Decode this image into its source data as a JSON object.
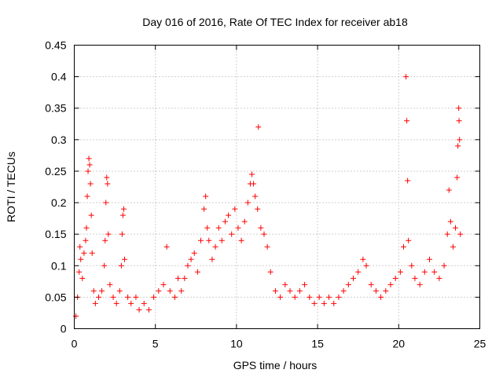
{
  "chart_data": {
    "type": "scatter",
    "title": "Day 016 of 2016, Rate Of TEC Index for receiver ab18",
    "xlabel": "GPS time / hours",
    "ylabel": "ROTI / TECUs",
    "xlim": [
      0,
      25
    ],
    "ylim": [
      0,
      0.45
    ],
    "x_ticks": [
      0,
      5,
      10,
      15,
      20,
      25
    ],
    "x_tick_labels": [
      "0",
      "5",
      "10",
      "15",
      "20",
      "25"
    ],
    "y_ticks": [
      0,
      0.05,
      0.1,
      0.15,
      0.2,
      0.25,
      0.3,
      0.35,
      0.4,
      0.45
    ],
    "y_tick_labels": [
      "0",
      "0.05",
      "0.1",
      "0.15",
      "0.2",
      "0.25",
      "0.3",
      "0.35",
      "0.4",
      "0.45"
    ],
    "grid": true,
    "marker": "plus",
    "marker_color": "#ff0000",
    "series": [
      {
        "points": [
          [
            0.1,
            0.02
          ],
          [
            0.2,
            0.05
          ],
          [
            0.3,
            0.09
          ],
          [
            0.35,
            0.13
          ],
          [
            0.4,
            0.11
          ],
          [
            0.5,
            0.08
          ],
          [
            0.6,
            0.12
          ],
          [
            0.7,
            0.14
          ],
          [
            0.75,
            0.16
          ],
          [
            0.8,
            0.21
          ],
          [
            0.85,
            0.25
          ],
          [
            0.9,
            0.27
          ],
          [
            0.95,
            0.26
          ],
          [
            1.0,
            0.23
          ],
          [
            1.05,
            0.18
          ],
          [
            1.1,
            0.12
          ],
          [
            1.2,
            0.06
          ],
          [
            1.3,
            0.04
          ],
          [
            1.5,
            0.05
          ],
          [
            1.7,
            0.06
          ],
          [
            1.85,
            0.1
          ],
          [
            1.9,
            0.14
          ],
          [
            1.95,
            0.2
          ],
          [
            2.0,
            0.24
          ],
          [
            2.05,
            0.23
          ],
          [
            2.1,
            0.15
          ],
          [
            2.2,
            0.07
          ],
          [
            2.4,
            0.05
          ],
          [
            2.6,
            0.04
          ],
          [
            2.8,
            0.06
          ],
          [
            2.9,
            0.1
          ],
          [
            2.95,
            0.15
          ],
          [
            3.0,
            0.18
          ],
          [
            3.05,
            0.19
          ],
          [
            3.1,
            0.11
          ],
          [
            3.3,
            0.05
          ],
          [
            3.5,
            0.04
          ],
          [
            3.8,
            0.05
          ],
          [
            4.0,
            0.03
          ],
          [
            4.3,
            0.04
          ],
          [
            4.6,
            0.03
          ],
          [
            4.9,
            0.05
          ],
          [
            5.2,
            0.06
          ],
          [
            5.5,
            0.07
          ],
          [
            5.7,
            0.13
          ],
          [
            5.9,
            0.06
          ],
          [
            6.2,
            0.05
          ],
          [
            6.4,
            0.08
          ],
          [
            6.6,
            0.06
          ],
          [
            6.8,
            0.08
          ],
          [
            7.0,
            0.1
          ],
          [
            7.2,
            0.11
          ],
          [
            7.4,
            0.12
          ],
          [
            7.6,
            0.09
          ],
          [
            7.8,
            0.14
          ],
          [
            8.0,
            0.19
          ],
          [
            8.1,
            0.21
          ],
          [
            8.2,
            0.16
          ],
          [
            8.3,
            0.14
          ],
          [
            8.5,
            0.11
          ],
          [
            8.7,
            0.13
          ],
          [
            8.9,
            0.16
          ],
          [
            9.1,
            0.14
          ],
          [
            9.3,
            0.17
          ],
          [
            9.5,
            0.18
          ],
          [
            9.7,
            0.15
          ],
          [
            9.9,
            0.19
          ],
          [
            10.1,
            0.16
          ],
          [
            10.3,
            0.14
          ],
          [
            10.5,
            0.17
          ],
          [
            10.7,
            0.2
          ],
          [
            10.85,
            0.23
          ],
          [
            10.95,
            0.245
          ],
          [
            11.05,
            0.23
          ],
          [
            11.15,
            0.21
          ],
          [
            11.3,
            0.19
          ],
          [
            11.35,
            0.32
          ],
          [
            11.5,
            0.16
          ],
          [
            11.7,
            0.15
          ],
          [
            11.9,
            0.13
          ],
          [
            12.1,
            0.09
          ],
          [
            12.4,
            0.06
          ],
          [
            12.7,
            0.05
          ],
          [
            13.0,
            0.07
          ],
          [
            13.3,
            0.06
          ],
          [
            13.6,
            0.05
          ],
          [
            13.9,
            0.06
          ],
          [
            14.2,
            0.07
          ],
          [
            14.5,
            0.05
          ],
          [
            14.8,
            0.04
          ],
          [
            15.1,
            0.05
          ],
          [
            15.4,
            0.04
          ],
          [
            15.7,
            0.05
          ],
          [
            16.0,
            0.04
          ],
          [
            16.3,
            0.05
          ],
          [
            16.6,
            0.06
          ],
          [
            16.9,
            0.07
          ],
          [
            17.2,
            0.08
          ],
          [
            17.5,
            0.09
          ],
          [
            17.8,
            0.11
          ],
          [
            18.0,
            0.1
          ],
          [
            18.3,
            0.07
          ],
          [
            18.6,
            0.06
          ],
          [
            18.9,
            0.05
          ],
          [
            19.2,
            0.06
          ],
          [
            19.5,
            0.07
          ],
          [
            19.8,
            0.08
          ],
          [
            20.1,
            0.09
          ],
          [
            20.3,
            0.13
          ],
          [
            20.45,
            0.4
          ],
          [
            20.5,
            0.33
          ],
          [
            20.55,
            0.235
          ],
          [
            20.6,
            0.14
          ],
          [
            20.8,
            0.1
          ],
          [
            21.0,
            0.08
          ],
          [
            21.3,
            0.07
          ],
          [
            21.6,
            0.09
          ],
          [
            21.9,
            0.11
          ],
          [
            22.2,
            0.09
          ],
          [
            22.5,
            0.08
          ],
          [
            22.8,
            0.1
          ],
          [
            23.0,
            0.15
          ],
          [
            23.1,
            0.22
          ],
          [
            23.2,
            0.17
          ],
          [
            23.35,
            0.13
          ],
          [
            23.5,
            0.16
          ],
          [
            23.6,
            0.24
          ],
          [
            23.65,
            0.29
          ],
          [
            23.7,
            0.35
          ],
          [
            23.72,
            0.33
          ],
          [
            23.75,
            0.3
          ],
          [
            23.8,
            0.15
          ]
        ]
      }
    ]
  }
}
